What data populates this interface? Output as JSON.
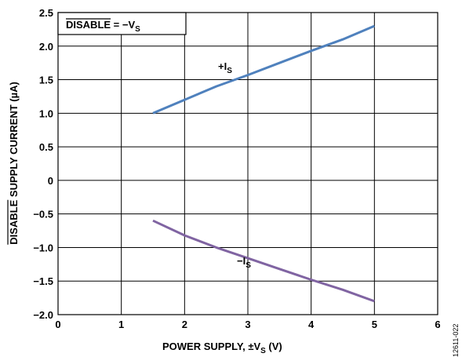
{
  "chart_data": {
    "type": "line",
    "xlabel": {
      "main": "POWER SUPPLY, ±V",
      "sub": "S",
      "tail": " (V)"
    },
    "ylabel": {
      "overbar": "DISABLE",
      "rest": " SUPPLY CURRENT (µA)"
    },
    "xlim": [
      0,
      6
    ],
    "ylim": [
      -2.0,
      2.5
    ],
    "x_ticks": [
      0,
      1,
      2,
      3,
      4,
      5,
      6
    ],
    "x_tick_labels": [
      "0",
      "1",
      "2",
      "3",
      "4",
      "5",
      "6"
    ],
    "y_ticks": [
      2.5,
      2.0,
      1.5,
      1.0,
      0.5,
      0,
      -0.5,
      -1.0,
      -1.5,
      -2.0
    ],
    "y_tick_labels": [
      "2.5",
      "2.0",
      "1.5",
      "1.0",
      "0.5",
      "0",
      "−0.5",
      "−1.0",
      "−1.5",
      "−2.0"
    ],
    "grid": true,
    "condition_label": {
      "overbar": "DISABLE",
      "middle": " = −V",
      "sub": "S"
    },
    "series": [
      {
        "name": "+IS",
        "label": {
          "main": "+I",
          "sub": "S"
        },
        "color": "#4f81bd",
        "x": [
          1.5,
          2.0,
          2.5,
          3.0,
          3.5,
          4.0,
          4.5,
          5.0
        ],
        "y": [
          1.0,
          1.2,
          1.4,
          1.57,
          1.75,
          1.93,
          2.1,
          2.3
        ]
      },
      {
        "name": "−IS",
        "label": {
          "main": "−I",
          "sub": "S"
        },
        "color": "#8064a2",
        "x": [
          1.5,
          2.0,
          2.5,
          3.0,
          3.5,
          4.0,
          4.5,
          5.0
        ],
        "y": [
          -0.6,
          -0.82,
          -1.0,
          -1.16,
          -1.32,
          -1.48,
          -1.63,
          -1.8
        ]
      }
    ],
    "figure_id": "12611-022"
  }
}
